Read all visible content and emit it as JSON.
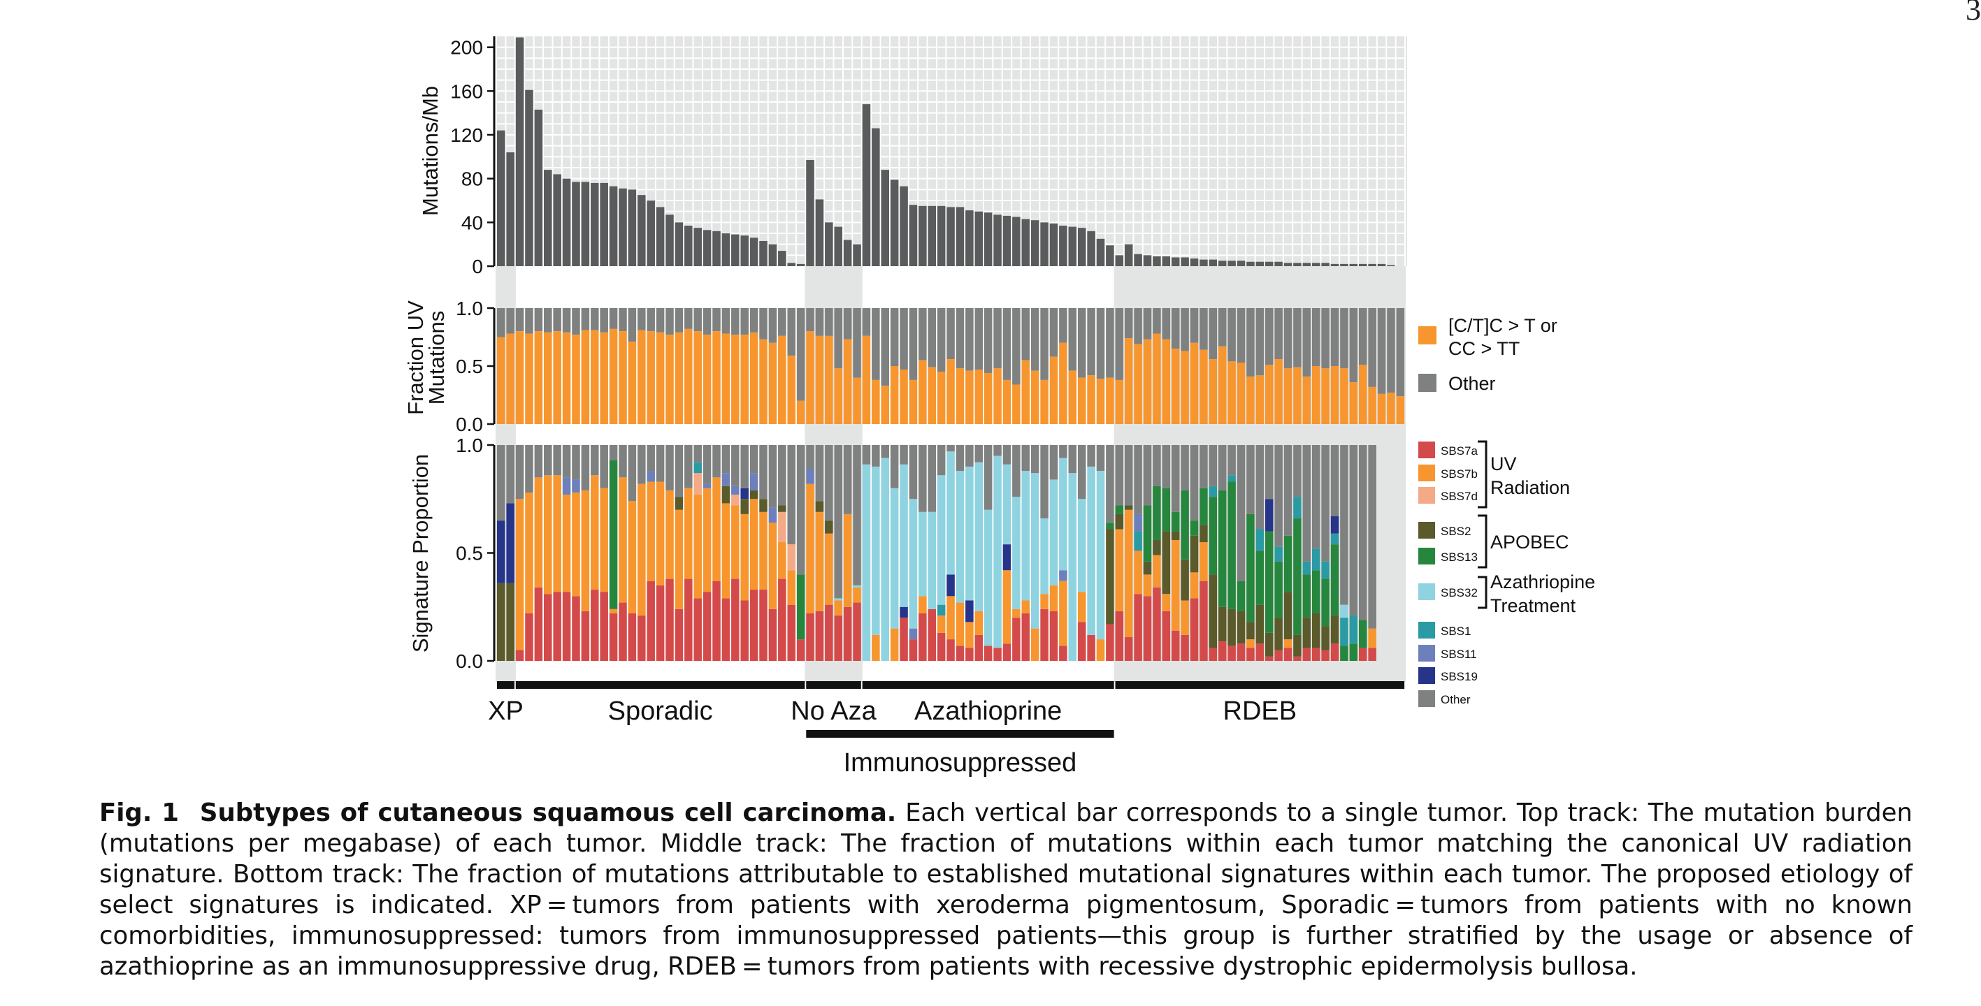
{
  "page_number": "3",
  "figure": {
    "label": "Fig. 1",
    "title": "Subtypes of cutaneous squamous cell carcinoma.",
    "text": "Each vertical bar corresponds to a single tumor. Top track: The mutation burden (mutations per megabase) of each tumor. Middle track: The fraction of mutations within each tumor matching the canonical UV radiation signature. Bottom track: The fraction of mutations attributable to established mutational signatures within each tumor. The proposed etiology of select signatures is indicated. XP = tumors from patients with xeroderma pigmentosum, Sporadic = tumors from patients with no known comorbidities, immunosuppressed: tumors from immunosuppressed patients—this group is further stratified by the usage or absence of azathioprine as an immunosuppressive drug, RDEB = tumors from patients with recessive dystrophic epidermolysis bullosa."
  },
  "colors": {
    "bar_dark": "#595b5c",
    "grid_bg": "#e3e4e4",
    "uv": "#f7962f",
    "other": "#7f8181",
    "SBS7a": "#d44a4a",
    "SBS7b": "#f7962f",
    "SBS7d": "#f4aa86",
    "SBS2": "#5b5a2a",
    "SBS13": "#27863d",
    "SBS32": "#8fd3e0",
    "SBS1": "#2a9aa3",
    "SBS11": "#6d80bb",
    "SBS19": "#26358a"
  },
  "chart_data": [
    {
      "type": "bar",
      "ylabel": "Mutations/Mb",
      "ylim": [
        0,
        210
      ],
      "yticks": [
        "0",
        "40",
        "80",
        "120",
        "160",
        "200"
      ],
      "values": [
        124,
        104,
        209,
        161,
        143,
        88,
        84,
        80,
        77,
        77,
        76,
        76,
        73,
        71,
        70,
        65,
        60,
        54,
        47,
        40,
        37,
        35,
        33,
        32,
        30,
        29,
        28,
        26,
        23,
        20,
        14,
        3,
        2,
        97,
        61,
        40,
        36,
        24,
        20,
        148,
        126,
        88,
        79,
        73,
        56,
        55,
        55,
        55,
        54,
        54,
        51,
        50,
        49,
        47,
        46,
        45,
        43,
        42,
        40,
        39,
        37,
        36,
        35,
        32,
        25,
        19,
        10,
        20,
        11,
        10,
        9,
        9,
        8,
        8,
        7,
        6,
        6,
        5,
        5,
        5,
        4,
        4,
        4,
        4,
        3,
        3,
        3,
        3,
        3,
        2,
        2,
        2,
        2,
        2,
        2,
        1
      ]
    },
    {
      "type": "bar",
      "ylabel": "Fraction UV Mutations",
      "ylim": [
        0,
        1
      ],
      "yticks": [
        "0.0",
        "0.5",
        "1.0"
      ],
      "series": [
        {
          "name": "[C/T]C > T or CC > TT",
          "values": [
            0.75,
            0.78,
            0.8,
            0.78,
            0.8,
            0.79,
            0.8,
            0.79,
            0.77,
            0.81,
            0.81,
            0.79,
            0.82,
            0.8,
            0.71,
            0.81,
            0.8,
            0.79,
            0.77,
            0.79,
            0.82,
            0.8,
            0.77,
            0.8,
            0.78,
            0.77,
            0.77,
            0.79,
            0.73,
            0.7,
            0.76,
            0.59,
            0.2,
            0.8,
            0.76,
            0.76,
            0.48,
            0.73,
            0.4,
            0.76,
            0.38,
            0.33,
            0.5,
            0.47,
            0.38,
            0.55,
            0.49,
            0.45,
            0.56,
            0.48,
            0.46,
            0.47,
            0.44,
            0.48,
            0.38,
            0.34,
            0.55,
            0.46,
            0.38,
            0.58,
            0.7,
            0.46,
            0.4,
            0.42,
            0.39,
            0.4,
            0.38,
            0.74,
            0.69,
            0.73,
            0.78,
            0.73,
            0.65,
            0.63,
            0.7,
            0.64,
            0.56,
            0.67,
            0.54,
            0.53,
            0.41,
            0.42,
            0.51,
            0.56,
            0.48,
            0.49,
            0.41,
            0.5,
            0.48,
            0.5,
            0.48,
            0.36,
            0.51,
            0.32,
            0.26,
            0.27,
            0.24
          ]
        },
        {
          "name": "Other",
          "values": []
        }
      ]
    },
    {
      "type": "bar",
      "ylabel": "Signature Proportion",
      "ylim": [
        0,
        1
      ],
      "yticks": [
        "0.0",
        "0.5",
        "1.0"
      ],
      "series_names": [
        "SBS7a",
        "SBS7b",
        "SBS7d",
        "SBS2",
        "SBS13",
        "SBS32",
        "SBS1",
        "SBS11",
        "SBS19",
        "Other"
      ],
      "legend_groups": [
        {
          "label": "UV Radiation",
          "members": [
            "SBS7a",
            "SBS7b",
            "SBS7d"
          ]
        },
        {
          "label": "APOBEC",
          "members": [
            "SBS2",
            "SBS13"
          ]
        },
        {
          "label": "Azathriopine Treatment",
          "members": [
            "SBS32"
          ]
        }
      ],
      "samples": [
        {
          "SBS7a": 0.0,
          "SBS2": 0.36,
          "SBS19": 0.29
        },
        {
          "SBS7a": 0.0,
          "SBS2": 0.36,
          "SBS19": 0.37
        },
        {
          "SBS7a": 0.05,
          "SBS7b": 0.7
        },
        {
          "SBS7a": 0.22,
          "SBS7b": 0.56
        },
        {
          "SBS7a": 0.34,
          "SBS7b": 0.51
        },
        {
          "SBS7a": 0.31,
          "SBS7b": 0.55
        },
        {
          "SBS7a": 0.32,
          "SBS7b": 0.54
        },
        {
          "SBS7a": 0.32,
          "SBS7b": 0.45,
          "SBS11": 0.08
        },
        {
          "SBS7a": 0.3,
          "SBS7b": 0.48,
          "SBS11": 0.06
        },
        {
          "SBS7a": 0.23,
          "SBS7b": 0.56
        },
        {
          "SBS7a": 0.33,
          "SBS7b": 0.53
        },
        {
          "SBS7a": 0.32,
          "SBS7b": 0.48
        },
        {
          "SBS7a": 0.22,
          "SBS7b": 0.02,
          "SBS13": 0.69
        },
        {
          "SBS7a": 0.27,
          "SBS7b": 0.58
        },
        {
          "SBS7a": 0.22,
          "SBS7b": 0.52
        },
        {
          "SBS7a": 0.21,
          "SBS7b": 0.61
        },
        {
          "SBS7a": 0.37,
          "SBS7b": 0.46,
          "SBS11": 0.05
        },
        {
          "SBS7a": 0.35,
          "SBS7b": 0.48
        },
        {
          "SBS7a": 0.38,
          "SBS7b": 0.41
        },
        {
          "SBS7a": 0.24,
          "SBS7b": 0.46,
          "SBS2": 0.06
        },
        {
          "SBS7a": 0.38,
          "SBS7b": 0.42
        },
        {
          "SBS7a": 0.29,
          "SBS7b": 0.48,
          "SBS7d": 0.1,
          "SBS1": 0.05
        },
        {
          "SBS7a": 0.32,
          "SBS7b": 0.48,
          "SBS11": 0.02
        },
        {
          "SBS7a": 0.37,
          "SBS7b": 0.48
        },
        {
          "SBS7a": 0.29,
          "SBS7b": 0.44,
          "SBS2": 0.08,
          "SBS11": 0.06
        },
        {
          "SBS7a": 0.38,
          "SBS7b": 0.34,
          "SBS7d": 0.05,
          "SBS11": 0.04
        },
        {
          "SBS7a": 0.28,
          "SBS7b": 0.4,
          "SBS2": 0.07,
          "SBS19": 0.05
        },
        {
          "SBS7a": 0.33,
          "SBS7b": 0.42,
          "SBS2": 0.04,
          "SBS11": 0.08
        },
        {
          "SBS7a": 0.33,
          "SBS7b": 0.36,
          "SBS2": 0.06
        },
        {
          "SBS7a": 0.24,
          "SBS7b": 0.4,
          "SBS11": 0.07
        },
        {
          "SBS7a": 0.38,
          "SBS7b": 0.17,
          "SBS7d": 0.14,
          "SBS2": 0.03
        },
        {
          "SBS7a": 0.26,
          "SBS7b": 0.16,
          "SBS7d": 0.12
        },
        {
          "SBS7a": 0.1,
          "SBS13": 0.3
        },
        {
          "SBS7a": 0.22,
          "SBS7b": 0.6,
          "SBS11": 0.07
        },
        {
          "SBS7a": 0.23,
          "SBS7b": 0.46,
          "SBS2": 0.05
        },
        {
          "SBS7a": 0.26,
          "SBS7b": 0.33,
          "SBS2": 0.06
        },
        {
          "SBS7a": 0.21,
          "SBS7b": 0.07,
          "SBS32": 0.01
        },
        {
          "SBS7a": 0.25,
          "SBS7b": 0.43
        },
        {
          "SBS7a": 0.27,
          "SBS7b": 0.07,
          "SBS32": 0.01
        },
        {
          "SBS32": 0.91
        },
        {
          "SBS7b": 0.12,
          "SBS32": 0.78
        },
        {
          "SBS32": 0.94
        },
        {
          "SBS7b": 0.15,
          "SBS32": 0.65
        },
        {
          "SBS7a": 0.2,
          "SBS32": 0.66,
          "SBS19": 0.05
        },
        {
          "SBS7a": 0.1,
          "SBS32": 0.6,
          "SBS11": 0.05
        },
        {
          "SBS7a": 0.22,
          "SBS7b": 0.08,
          "SBS32": 0.39
        },
        {
          "SBS7a": 0.24,
          "SBS32": 0.45
        },
        {
          "SBS7a": 0.13,
          "SBS7b": 0.08,
          "SBS1": 0.05,
          "SBS32": 0.6
        },
        {
          "SBS7a": 0.1,
          "SBS7b": 0.2,
          "SBS19": 0.1,
          "SBS32": 0.57
        },
        {
          "SBS7a": 0.07,
          "SBS7b": 0.2,
          "SBS32": 0.61
        },
        {
          "SBS7a": 0.06,
          "SBS7b": 0.12,
          "SBS19": 0.1,
          "SBS32": 0.62
        },
        {
          "SBS7a": 0.12,
          "SBS7b": 0.11,
          "SBS32": 0.69
        },
        {
          "SBS7a": 0.07,
          "SBS32": 0.63
        },
        {
          "SBS7a": 0.06,
          "SBS32": 0.89
        },
        {
          "SBS7a": 0.08,
          "SBS7b": 0.34,
          "SBS19": 0.12,
          "SBS32": 0.37
        },
        {
          "SBS7a": 0.2,
          "SBS7b": 0.04,
          "SBS32": 0.52
        },
        {
          "SBS7a": 0.22,
          "SBS7b": 0.06,
          "SBS32": 0.6
        },
        {
          "SBS7b": 0.15,
          "SBS32": 0.72
        },
        {
          "SBS7a": 0.24,
          "SBS7b": 0.07,
          "SBS32": 0.35
        },
        {
          "SBS7a": 0.23,
          "SBS7b": 0.12,
          "SBS32": 0.49
        },
        {
          "SBS7a": 0.07,
          "SBS7b": 0.3,
          "SBS11": 0.05,
          "SBS32": 0.52
        },
        {
          "SBS32": 0.87
        },
        {
          "SBS7a": 0.18,
          "SBS7b": 0.14,
          "SBS32": 0.43
        },
        {
          "SBS7a": 0.12,
          "SBS32": 0.78
        },
        {
          "SBS7b": 0.1,
          "SBS32": 0.78
        },
        {
          "SBS7a": 0.17,
          "SBS2": 0.44,
          "SBS13": 0.03
        },
        {
          "SBS7a": 0.23,
          "SBS7b": 0.38,
          "SBS2": 0.07,
          "SBS13": 0.04
        },
        {
          "SBS7a": 0.11,
          "SBS7b": 0.59,
          "SBS2": 0.02
        },
        {
          "SBS7a": 0.31,
          "SBS7b": 0.2,
          "SBS1": 0.09,
          "SBS11": 0.08
        },
        {
          "SBS7a": 0.3,
          "SBS7b": 0.1,
          "SBS2": 0.06,
          "SBS13": 0.26
        },
        {
          "SBS7a": 0.34,
          "SBS7b": 0.15,
          "SBS2": 0.07,
          "SBS13": 0.25
        },
        {
          "SBS7a": 0.23,
          "SBS7b": 0.08,
          "SBS2": 0.29,
          "SBS13": 0.2
        },
        {
          "SBS7a": 0.14,
          "SBS7b": 0.42,
          "SBS2": 0.04,
          "SBS13": 0.09
        },
        {
          "SBS7a": 0.12,
          "SBS7b": 0.16,
          "SBS2": 0.19,
          "SBS13": 0.32
        },
        {
          "SBS7a": 0.29,
          "SBS7b": 0.12,
          "SBS2": 0.17,
          "SBS13": 0.07
        },
        {
          "SBS7a": 0.37,
          "SBS7b": 0.18,
          "SBS2": 0.08,
          "SBS13": 0.17
        },
        {
          "SBS7a": 0.06,
          "SBS1": 0.05,
          "SBS2": 0.34,
          "SBS13": 0.36
        },
        {
          "SBS7a": 0.09,
          "SBS2": 0.16,
          "SBS13": 0.54
        },
        {
          "SBS7a": 0.07,
          "SBS1": 0.03,
          "SBS2": 0.17,
          "SBS13": 0.59
        },
        {
          "SBS7a": 0.08,
          "SBS2": 0.15,
          "SBS13": 0.14
        },
        {
          "SBS7a": 0.06,
          "SBS7b": 0.04,
          "SBS2": 0.08,
          "SBS13": 0.5
        },
        {
          "SBS7a": 0.08,
          "SBS1": 0.1,
          "SBS2": 0.18,
          "SBS13": 0.25
        },
        {
          "SBS7a": 0.02,
          "SBS2": 0.11,
          "SBS13": 0.47,
          "SBS19": 0.15
        },
        {
          "SBS7a": 0.05,
          "SBS1": 0.07,
          "SBS2": 0.15,
          "SBS13": 0.26
        },
        {
          "SBS7a": 0.06,
          "SBS7b": 0.04,
          "SBS2": 0.22,
          "SBS13": 0.26
        },
        {
          "SBS7a": 0.02,
          "SBS1": 0.1,
          "SBS2": 0.1,
          "SBS13": 0.54
        },
        {
          "SBS7a": 0.06,
          "SBS1": 0.06,
          "SBS2": 0.14,
          "SBS13": 0.2
        },
        {
          "SBS7a": 0.06,
          "SBS1": 0.1,
          "SBS2": 0.16,
          "SBS13": 0.2
        },
        {
          "SBS7a": 0.05,
          "SBS1": 0.08,
          "SBS2": 0.11,
          "SBS13": 0.22
        },
        {
          "SBS7a": 0.08,
          "SBS1": 0.05,
          "SBS2": 0.13,
          "SBS13": 0.33,
          "SBS19": 0.08
        },
        {
          "SBS1": 0.13,
          "SBS13": 0.07,
          "SBS32": 0.06
        },
        {
          "SBS1": 0.13,
          "SBS13": 0.08
        },
        {
          "SBS7a": 0.06,
          "SBS13": 0.13
        },
        {
          "SBS7a": 0.06,
          "SBS7b": 0.09
        }
      ]
    }
  ],
  "groups": [
    {
      "label": "XP",
      "count": 2
    },
    {
      "label": "Sporadic",
      "count": 31
    },
    {
      "label": "No Aza",
      "count": 6
    },
    {
      "label": "Azathioprine",
      "count": 27
    },
    {
      "label": "RDEB",
      "count": 31
    }
  ],
  "supergroup": {
    "label": "Immunosuppressed"
  },
  "legends": {
    "uv": [
      {
        "label_line1": "[C/T]C > T or",
        "label_line2": "CC > TT"
      },
      {
        "label_line1": "Other",
        "label_line2": ""
      }
    ],
    "signatures": [
      "SBS7a",
      "SBS7b",
      "SBS7d",
      "SBS2",
      "SBS13",
      "SBS32",
      "SBS1",
      "SBS11",
      "SBS19",
      "Other"
    ],
    "brackets": [
      {
        "line1": "UV",
        "line2": "Radiation"
      },
      {
        "line1": "APOBEC",
        "line2": ""
      },
      {
        "line1": "Azathriopine",
        "line2": "Treatment"
      }
    ]
  }
}
